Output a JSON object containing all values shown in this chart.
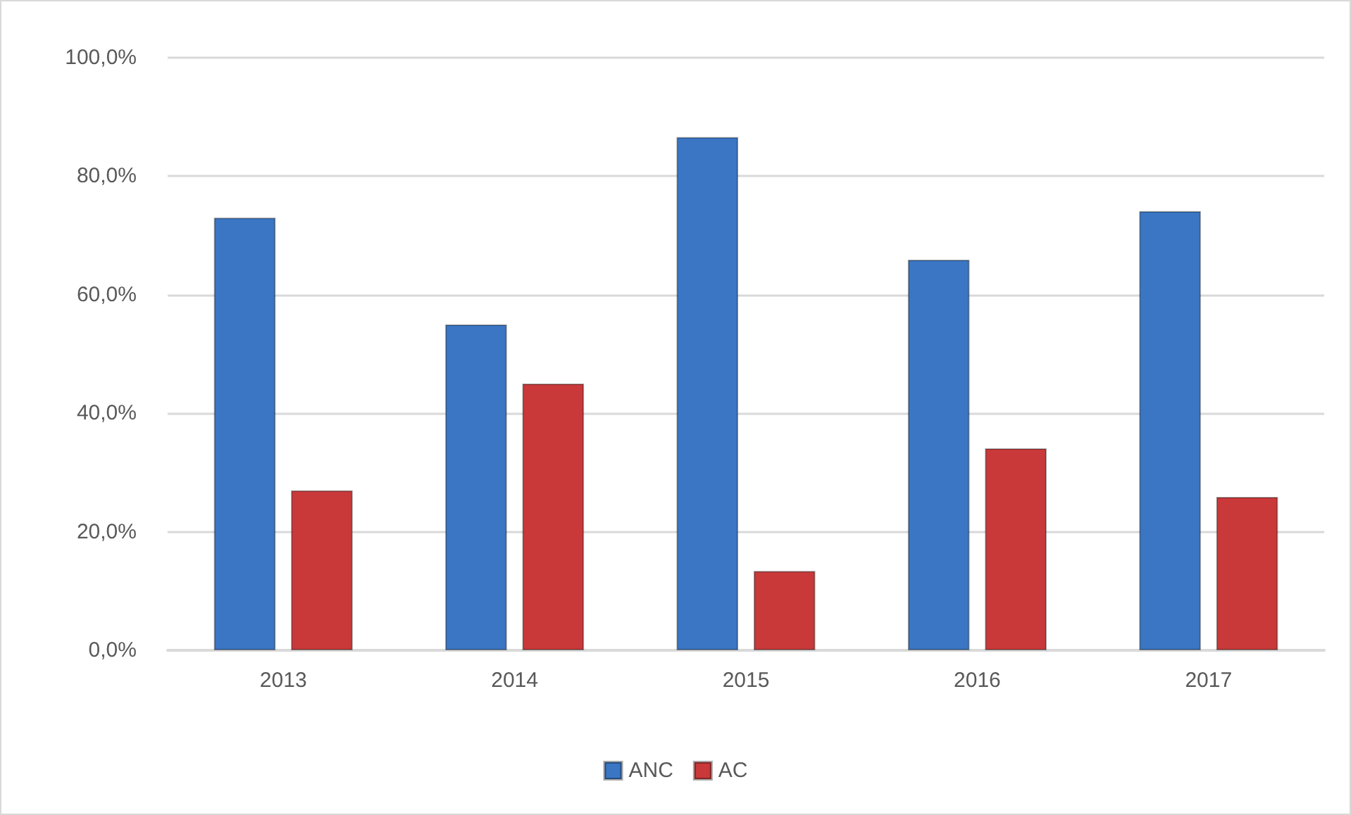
{
  "chart_data": {
    "type": "bar",
    "categories": [
      "2013",
      "2014",
      "2015",
      "2016",
      "2017"
    ],
    "series": [
      {
        "name": "ANC",
        "color": "#3a76c4",
        "values": [
          73.0,
          55.0,
          86.6,
          65.9,
          74.1
        ]
      },
      {
        "name": "AC",
        "color": "#c9393a",
        "values": [
          27.0,
          45.0,
          13.4,
          34.1,
          25.9
        ]
      }
    ],
    "ylim": [
      0,
      100
    ],
    "yticks": [
      {
        "value": 0,
        "label": "0,0%"
      },
      {
        "value": 20,
        "label": "20,0%"
      },
      {
        "value": 40,
        "label": "40,0%"
      },
      {
        "value": 60,
        "label": "60,0%"
      },
      {
        "value": 80,
        "label": "80,0%"
      },
      {
        "value": 100,
        "label": "100,0%"
      }
    ],
    "grid": "y",
    "legend": "bottom"
  }
}
